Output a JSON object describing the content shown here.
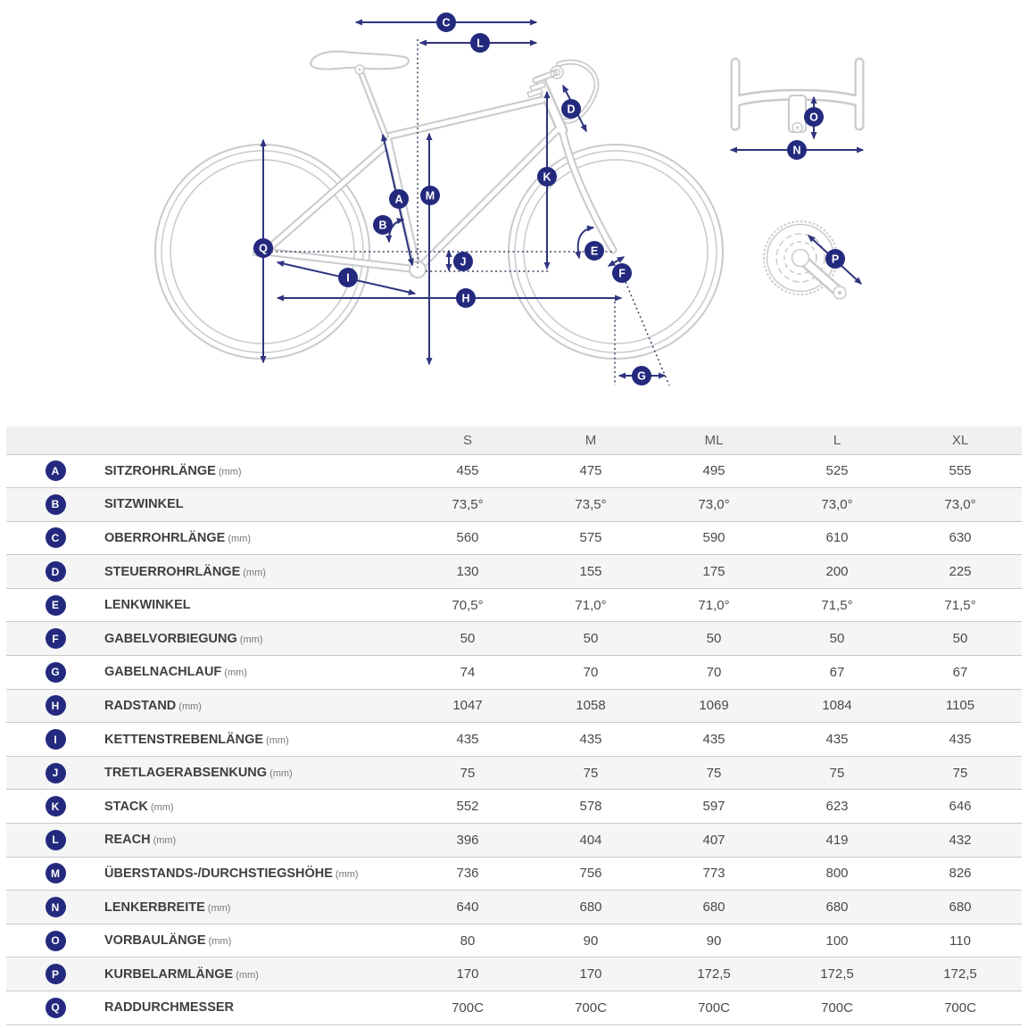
{
  "diagram": {
    "markers": {
      "A": "A",
      "B": "B",
      "C": "C",
      "D": "D",
      "E": "E",
      "F": "F",
      "G": "G",
      "H": "H",
      "I": "I",
      "J": "J",
      "K": "K",
      "L": "L",
      "M": "M",
      "N": "N",
      "O": "O",
      "P": "P",
      "Q": "Q"
    }
  },
  "table": {
    "size_headers": [
      "S",
      "M",
      "ML",
      "L",
      "XL"
    ],
    "rows": [
      {
        "key": "A",
        "label": "SITZROHRLÄNGE",
        "unit": "(mm)",
        "values": [
          "455",
          "475",
          "495",
          "525",
          "555"
        ]
      },
      {
        "key": "B",
        "label": "SITZWINKEL",
        "unit": "",
        "values": [
          "73,5°",
          "73,5°",
          "73,0°",
          "73,0°",
          "73,0°"
        ]
      },
      {
        "key": "C",
        "label": "OBERROHRLÄNGE",
        "unit": "(mm)",
        "values": [
          "560",
          "575",
          "590",
          "610",
          "630"
        ]
      },
      {
        "key": "D",
        "label": "STEUERROHRLÄNGE",
        "unit": "(mm)",
        "values": [
          "130",
          "155",
          "175",
          "200",
          "225"
        ]
      },
      {
        "key": "E",
        "label": "LENKWINKEL",
        "unit": "",
        "values": [
          "70,5°",
          "71,0°",
          "71,0°",
          "71,5°",
          "71,5°"
        ]
      },
      {
        "key": "F",
        "label": "GABELVORBIEGUNG",
        "unit": "(mm)",
        "values": [
          "50",
          "50",
          "50",
          "50",
          "50"
        ]
      },
      {
        "key": "G",
        "label": "GABELNACHLAUF",
        "unit": "(mm)",
        "values": [
          "74",
          "70",
          "70",
          "67",
          "67"
        ]
      },
      {
        "key": "H",
        "label": "RADSTAND",
        "unit": "(mm)",
        "values": [
          "1047",
          "1058",
          "1069",
          "1084",
          "1105"
        ]
      },
      {
        "key": "I",
        "label": "KETTENSTREBENLÄNGE",
        "unit": "(mm)",
        "values": [
          "435",
          "435",
          "435",
          "435",
          "435"
        ]
      },
      {
        "key": "J",
        "label": "TRETLAGERABSENKUNG",
        "unit": "(mm)",
        "values": [
          "75",
          "75",
          "75",
          "75",
          "75"
        ]
      },
      {
        "key": "K",
        "label": "STACK",
        "unit": "(mm)",
        "values": [
          "552",
          "578",
          "597",
          "623",
          "646"
        ]
      },
      {
        "key": "L",
        "label": "REACH",
        "unit": "(mm)",
        "values": [
          "396",
          "404",
          "407",
          "419",
          "432"
        ]
      },
      {
        "key": "M",
        "label": "ÜBERSTANDS-/DURCHSTIEGSHÖHE",
        "unit": "(mm)",
        "values": [
          "736",
          "756",
          "773",
          "800",
          "826"
        ]
      },
      {
        "key": "N",
        "label": "LENKERBREITE",
        "unit": "(mm)",
        "values": [
          "640",
          "680",
          "680",
          "680",
          "680"
        ]
      },
      {
        "key": "O",
        "label": "VORBAULÄNGE",
        "unit": "(mm)",
        "values": [
          "80",
          "90",
          "90",
          "100",
          "110"
        ]
      },
      {
        "key": "P",
        "label": "KURBELARMLÄNGE",
        "unit": "(mm)",
        "values": [
          "170",
          "170",
          "172,5",
          "172,5",
          "172,5"
        ]
      },
      {
        "key": "Q",
        "label": "RADDURCHMESSER",
        "unit": "",
        "values": [
          "700C",
          "700C",
          "700C",
          "700C",
          "700C"
        ]
      }
    ]
  },
  "colors": {
    "badge_navy": "#232a7e",
    "arrow_navy": "#2f357e",
    "dotted_line": "#3f415f",
    "bike_outline_gray": "#c9cacc",
    "header_bg": "#f0f0f0",
    "alt_row_bg": "#f5f5f5",
    "row_border": "#c9c9c9"
  }
}
